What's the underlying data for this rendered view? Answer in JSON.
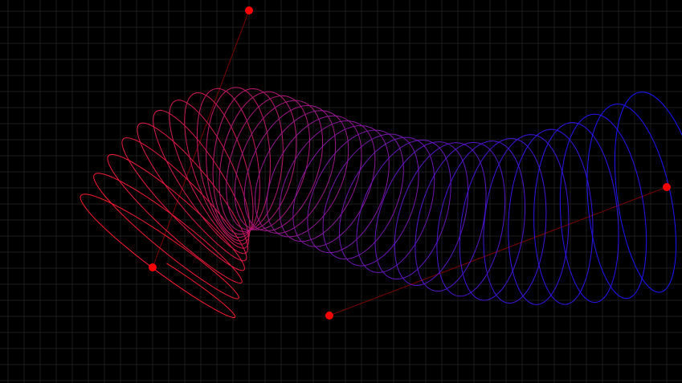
{
  "canvas": {
    "background_color": "#000000",
    "grid_color": "#1c1c1c",
    "grid_spacing_units": 20,
    "show_grid": true
  },
  "curve": {
    "start_color": "#ff1a2e",
    "end_color": "#1a14ff",
    "loop_count": 34,
    "control_handle_color": "#ff0000",
    "control_line_color": "#7a0000"
  },
  "control_points": [
    {
      "name": "anchor-start",
      "role": "anchor"
    },
    {
      "name": "handle-start",
      "role": "handle"
    },
    {
      "name": "handle-end",
      "role": "handle"
    },
    {
      "name": "anchor-end",
      "role": "anchor"
    }
  ]
}
